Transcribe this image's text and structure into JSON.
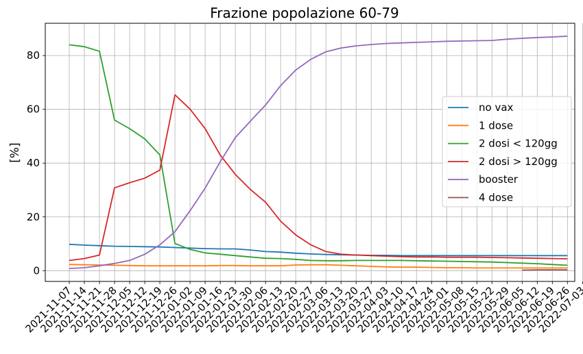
{
  "chart_data": {
    "type": "line",
    "title": "Frazione popolazione 60-79",
    "xlabel": "",
    "ylabel": "[%]",
    "ylim": [
      -4,
      92
    ],
    "yticks": [
      0,
      20,
      40,
      60,
      80
    ],
    "grid": true,
    "legend_position": "center-right",
    "categories": [
      "2021-11-07",
      "2021-11-14",
      "2021-11-21",
      "2021-11-28",
      "2021-12-05",
      "2021-12-12",
      "2021-12-19",
      "2021-12-26",
      "2022-01-02",
      "2022-01-09",
      "2022-01-16",
      "2022-01-23",
      "2022-01-30",
      "2022-02-06",
      "2022-02-13",
      "2022-02-20",
      "2022-02-27",
      "2022-03-06",
      "2022-03-13",
      "2022-03-20",
      "2022-03-27",
      "2022-04-03",
      "2022-04-10",
      "2022-04-17",
      "2022-04-24",
      "2022-05-01",
      "2022-05-08",
      "2022-05-15",
      "2022-05-22",
      "2022-05-29",
      "2022-06-05",
      "2022-06-12",
      "2022-06-19",
      "2022-06-26",
      "2022-07-03"
    ],
    "series": [
      {
        "name": "no vax",
        "color": "#1f77b4",
        "values": [
          9.8,
          9.5,
          9.3,
          9.1,
          9.0,
          8.9,
          8.8,
          8.6,
          8.4,
          8.2,
          8.1,
          8.1,
          7.7,
          7.1,
          6.9,
          6.5,
          6.2,
          6.0,
          5.9,
          5.8,
          5.7,
          5.7,
          5.6,
          5.6,
          5.6,
          5.6,
          5.6,
          5.6,
          5.6,
          5.6,
          5.6,
          5.6,
          5.6,
          5.6,
          null
        ]
      },
      {
        "name": "1 dose",
        "color": "#ff7f0e",
        "values": [
          2.3,
          2.2,
          2.1,
          2.0,
          1.9,
          1.8,
          1.8,
          1.8,
          1.8,
          1.8,
          1.9,
          1.9,
          1.8,
          1.8,
          1.8,
          2.1,
          2.2,
          2.2,
          2.0,
          1.8,
          1.6,
          1.4,
          1.3,
          1.3,
          1.2,
          1.1,
          1.1,
          1.0,
          1.0,
          1.0,
          1.0,
          1.0,
          1.0,
          1.0,
          null
        ]
      },
      {
        "name": "2 dosi < 120gg",
        "color": "#2ca02c",
        "values": [
          84.0,
          83.3,
          81.6,
          56.0,
          52.8,
          49.0,
          43.0,
          10.1,
          7.9,
          6.6,
          6.1,
          5.6,
          5.1,
          4.6,
          4.5,
          4.2,
          3.8,
          3.7,
          3.7,
          3.8,
          3.8,
          3.8,
          3.8,
          3.7,
          3.6,
          3.5,
          3.4,
          3.3,
          3.2,
          3.0,
          2.8,
          2.6,
          2.3,
          2.0,
          null
        ]
      },
      {
        "name": "2 dosi > 120gg",
        "color": "#d62728",
        "values": [
          3.8,
          4.5,
          5.8,
          30.8,
          32.7,
          34.4,
          37.4,
          65.4,
          60.1,
          52.8,
          43.0,
          35.8,
          30.2,
          25.5,
          18.4,
          13.3,
          9.6,
          7.1,
          6.1,
          5.8,
          5.6,
          5.4,
          5.2,
          5.1,
          5.1,
          5.0,
          5.0,
          5.0,
          4.9,
          4.8,
          4.7,
          4.6,
          4.5,
          4.4,
          null
        ]
      },
      {
        "name": "booster",
        "color": "#9467bd",
        "values": [
          0.8,
          1.1,
          1.8,
          2.7,
          3.8,
          6.1,
          9.6,
          14.5,
          22.3,
          30.7,
          40.5,
          49.5,
          55.6,
          61.6,
          68.8,
          74.6,
          78.6,
          81.4,
          82.8,
          83.6,
          84.1,
          84.5,
          84.7,
          84.9,
          85.1,
          85.3,
          85.4,
          85.5,
          85.6,
          86.1,
          86.4,
          86.7,
          86.9,
          87.2,
          null
        ]
      },
      {
        "name": "4 dose",
        "color": "#8c564b",
        "values": [
          null,
          null,
          null,
          null,
          null,
          null,
          null,
          null,
          null,
          null,
          null,
          null,
          null,
          null,
          null,
          null,
          null,
          null,
          null,
          null,
          null,
          null,
          null,
          null,
          null,
          null,
          null,
          null,
          null,
          null,
          0.2,
          0.3,
          0.3,
          0.3,
          null
        ]
      }
    ]
  }
}
